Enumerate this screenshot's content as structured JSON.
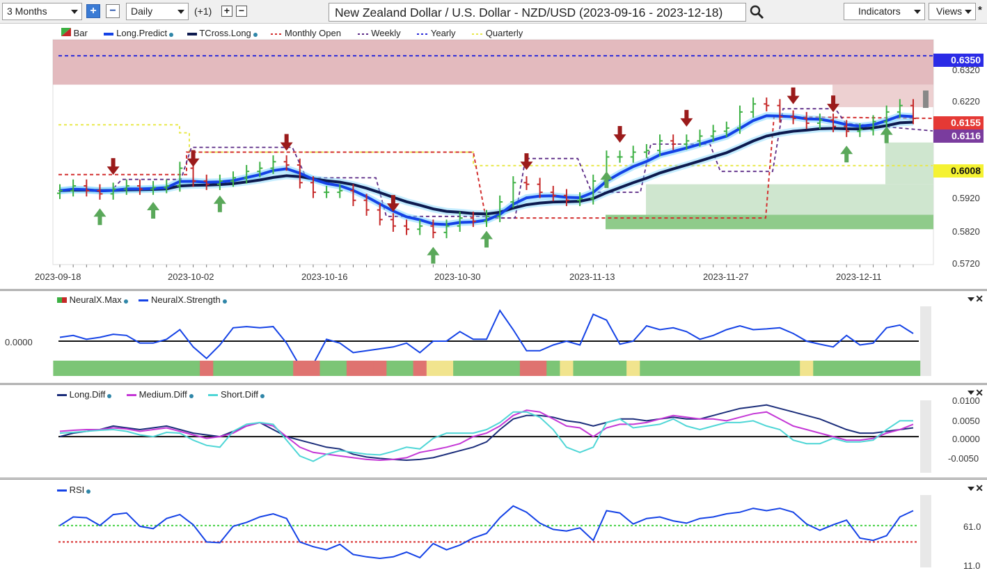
{
  "toolbar": {
    "range_value": "3 Months",
    "interval_value": "Daily",
    "offset_label": "(+1)",
    "title": "New Zealand Dollar / U.S. Dollar - NZD/USD (2023-09-16 - 2023-12-18)",
    "indicators_label": "Indicators",
    "views_label": "Views",
    "pin_label": "*"
  },
  "colors": {
    "up": "#3cb043",
    "down": "#c62828",
    "predict": "#1442e6",
    "tcross": "#0d1a4f",
    "monthly": "#d32f2f",
    "weekly": "#5b2a86",
    "yearly": "#2b2bd9",
    "quarterly": "#e8e84a",
    "neural_green": "#7cc576",
    "neural_red": "#df7370",
    "neural_yellow": "#f1e48e"
  },
  "main": {
    "legend": [
      "Bar",
      "Long.Predict",
      "TCross.Long",
      "Monthly Open",
      "Weekly",
      "Yearly",
      "Quarterly"
    ],
    "y_ticks": [
      "0.6320",
      "0.6220",
      "0.5920",
      "0.5820",
      "0.5720"
    ],
    "x_ticks": [
      "2023-09-18",
      "2023-10-02",
      "2023-10-16",
      "2023-10-30",
      "2023-11-13",
      "2023-11-27",
      "2023-12-11"
    ],
    "price_labels": {
      "yearly": "0.6350",
      "monthly": "0.6155",
      "weekly": "0.6116",
      "quarterly": "0.6008"
    }
  },
  "neural": {
    "legend": [
      "NeuralX.Max",
      "NeuralX.Strength"
    ],
    "zero_label": "0.0000"
  },
  "diff": {
    "legend": [
      "Long.Diff",
      "Medium.Diff",
      "Short.Diff"
    ],
    "y_ticks": [
      "0.0100",
      "0.0050",
      "0.0000",
      "-0.0050"
    ]
  },
  "rsi": {
    "legend": [
      "RSI"
    ],
    "y_ticks": [
      "61.0",
      "11.0"
    ]
  },
  "chart_data": [
    {
      "type": "candlestick",
      "title": "New Zealand Dollar / U.S. Dollar - NZD/USD (2023-09-16 - 2023-12-18)",
      "x": [
        "2023-09-18",
        "2023-09-19",
        "2023-09-20",
        "2023-09-21",
        "2023-09-22",
        "2023-09-25",
        "2023-09-26",
        "2023-09-27",
        "2023-09-28",
        "2023-09-29",
        "2023-10-02",
        "2023-10-03",
        "2023-10-04",
        "2023-10-05",
        "2023-10-06",
        "2023-10-09",
        "2023-10-10",
        "2023-10-11",
        "2023-10-12",
        "2023-10-13",
        "2023-10-16",
        "2023-10-17",
        "2023-10-18",
        "2023-10-19",
        "2023-10-20",
        "2023-10-23",
        "2023-10-24",
        "2023-10-25",
        "2023-10-26",
        "2023-10-27",
        "2023-10-30",
        "2023-10-31",
        "2023-11-01",
        "2023-11-02",
        "2023-11-03",
        "2023-11-06",
        "2023-11-07",
        "2023-11-08",
        "2023-11-09",
        "2023-11-10",
        "2023-11-13",
        "2023-11-14",
        "2023-11-15",
        "2023-11-16",
        "2023-11-17",
        "2023-11-20",
        "2023-11-21",
        "2023-11-22",
        "2023-11-23",
        "2023-11-24",
        "2023-11-27",
        "2023-11-28",
        "2023-11-29",
        "2023-11-30",
        "2023-12-01",
        "2023-12-04",
        "2023-12-05",
        "2023-12-06",
        "2023-12-07",
        "2023-12-08",
        "2023-12-11",
        "2023-12-12",
        "2023-12-13",
        "2023-12-14",
        "2023-12-15"
      ],
      "close": [
        0.593,
        0.5945,
        0.593,
        0.592,
        0.5935,
        0.5945,
        0.5935,
        0.594,
        0.5945,
        0.6,
        0.596,
        0.595,
        0.596,
        0.597,
        0.599,
        0.6,
        0.602,
        0.601,
        0.5955,
        0.5925,
        0.5925,
        0.593,
        0.59,
        0.587,
        0.584,
        0.582,
        0.581,
        0.582,
        0.58,
        0.582,
        0.5845,
        0.5835,
        0.585,
        0.5895,
        0.5955,
        0.595,
        0.5925,
        0.5915,
        0.59,
        0.5905,
        0.596,
        0.6035,
        0.6035,
        0.605,
        0.6055,
        0.6085,
        0.6075,
        0.6085,
        0.61,
        0.6115,
        0.6125,
        0.6175,
        0.62,
        0.6195,
        0.616,
        0.6155,
        0.614,
        0.615,
        0.613,
        0.6115,
        0.612,
        0.6145,
        0.6175,
        0.6195,
        0.6155
      ],
      "y_range": [
        0.57,
        0.64
      ],
      "levels": {
        "yearly": 0.635,
        "monthly_open": 0.6155,
        "weekly": 0.6116,
        "quarterly": 0.6008
      }
    },
    {
      "type": "line",
      "series": [
        {
          "name": "NeuralX.Strength",
          "values": [
            0.1,
            0.15,
            0.05,
            0.1,
            0.18,
            0.15,
            -0.05,
            -0.05,
            0.05,
            0.3,
            -0.15,
            -0.45,
            -0.1,
            0.35,
            0.38,
            0.35,
            0.38,
            -0.05,
            -0.65,
            -0.6,
            0.05,
            -0.05,
            -0.3,
            -0.25,
            -0.2,
            -0.15,
            -0.05,
            -0.3,
            0.0,
            0.0,
            0.25,
            0.05,
            0.05,
            0.8,
            0.3,
            -0.25,
            -0.25,
            -0.1,
            0.0,
            -0.1,
            0.7,
            0.55,
            -0.08,
            0.0,
            0.4,
            0.3,
            0.35,
            0.25,
            0.05,
            0.15,
            0.3,
            0.4,
            0.3,
            0.32,
            0.35,
            0.2,
            0.0,
            -0.08,
            -0.15,
            0.15,
            -0.1,
            -0.05,
            0.35,
            0.42,
            0.2
          ]
        }
      ]
    },
    {
      "type": "line",
      "y_range": [
        -0.0075,
        0.0115
      ],
      "series": [
        {
          "name": "Long.Diff",
          "values": [
            0.0,
            0.001,
            0.0015,
            0.002,
            0.003,
            0.0025,
            0.002,
            0.0025,
            0.003,
            0.002,
            0.001,
            0.0005,
            0.0,
            0.0015,
            0.003,
            0.004,
            0.002,
            0.0,
            -0.001,
            -0.002,
            -0.003,
            -0.0035,
            -0.005,
            -0.0058,
            -0.0062,
            -0.0065,
            -0.0067,
            -0.0065,
            -0.006,
            -0.005,
            -0.004,
            -0.003,
            -0.0015,
            0.002,
            0.005,
            0.006,
            0.006,
            0.0055,
            0.0045,
            0.004,
            0.003,
            0.004,
            0.005,
            0.005,
            0.0045,
            0.005,
            0.0055,
            0.005,
            0.005,
            0.006,
            0.007,
            0.008,
            0.0085,
            0.009,
            0.008,
            0.007,
            0.006,
            0.005,
            0.0035,
            0.002,
            0.001,
            0.001,
            0.0015,
            0.002,
            0.0025
          ]
        },
        {
          "name": "Medium.Diff",
          "values": [
            0.0015,
            0.0018,
            0.002,
            0.002,
            0.0025,
            0.0022,
            0.0015,
            0.002,
            0.0025,
            0.0015,
            0.0005,
            -0.0005,
            0.0,
            0.001,
            0.003,
            0.004,
            0.003,
            0.0,
            -0.003,
            -0.0045,
            -0.005,
            -0.0055,
            -0.006,
            -0.0065,
            -0.0067,
            -0.0065,
            -0.006,
            -0.0045,
            -0.0038,
            -0.003,
            -0.002,
            0.0,
            0.001,
            0.003,
            0.006,
            0.0075,
            0.007,
            0.005,
            0.003,
            0.0025,
            0.0,
            0.0025,
            0.0035,
            0.0035,
            0.004,
            0.005,
            0.006,
            0.0055,
            0.005,
            0.005,
            0.0045,
            0.0055,
            0.0065,
            0.007,
            0.005,
            0.003,
            0.002,
            0.001,
            0.0,
            -0.001,
            -0.001,
            -0.0005,
            0.001,
            0.002,
            0.0035
          ]
        },
        {
          "name": "Short.Diff",
          "values": [
            0.001,
            0.0012,
            0.0015,
            0.0018,
            0.002,
            0.0015,
            0.0005,
            0.0,
            0.0012,
            0.001,
            -0.001,
            -0.0025,
            -0.003,
            0.0015,
            0.0035,
            0.004,
            0.0035,
            -0.001,
            -0.0055,
            -0.007,
            -0.005,
            -0.004,
            -0.0045,
            -0.005,
            -0.0052,
            -0.0042,
            -0.003,
            -0.0035,
            -0.0005,
            0.001,
            0.001,
            0.001,
            0.002,
            0.004,
            0.007,
            0.007,
            0.0055,
            0.002,
            -0.003,
            -0.0045,
            -0.003,
            0.004,
            0.005,
            0.0025,
            0.003,
            0.0035,
            0.005,
            0.003,
            0.002,
            0.003,
            0.004,
            0.004,
            0.0045,
            0.003,
            0.002,
            -0.001,
            -0.002,
            -0.002,
            -0.0005,
            -0.0015,
            -0.0015,
            -0.001,
            0.002,
            0.0045,
            0.0045
          ]
        }
      ]
    },
    {
      "type": "line",
      "y_range": [
        11,
        100
      ],
      "series": [
        {
          "name": "RSI",
          "values": [
            61,
            72,
            71,
            61,
            75,
            77,
            60,
            57,
            70,
            75,
            62,
            40,
            39,
            60,
            65,
            72,
            76,
            70,
            40,
            34,
            30,
            37,
            24,
            21,
            19,
            21,
            27,
            20,
            38,
            30,
            36,
            45,
            51,
            71,
            86,
            78,
            64,
            56,
            54,
            58,
            42,
            80,
            77,
            63,
            70,
            72,
            67,
            64,
            70,
            72,
            76,
            78,
            83,
            80,
            83,
            78,
            63,
            55,
            62,
            68,
            45,
            42,
            48,
            72,
            80
          ]
        }
      ],
      "levels": {
        "upper": 61,
        "lower": 40
      }
    }
  ]
}
